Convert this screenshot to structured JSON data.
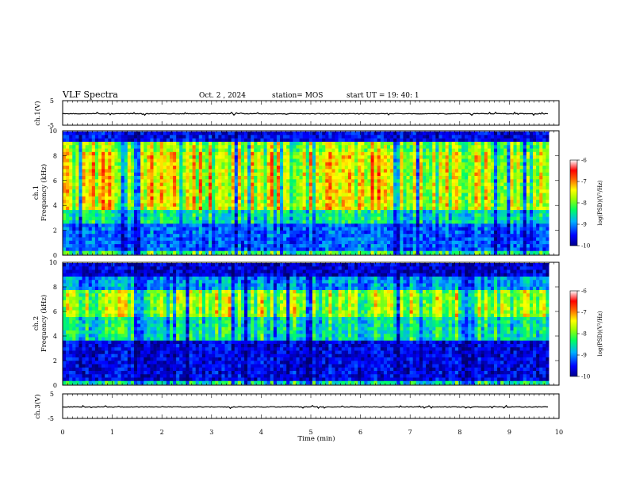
{
  "header": {
    "title": "VLF Spectra",
    "date": "Oct. 2 , 2024",
    "station": "station= MOS",
    "start": "start UT =   19: 40: 1"
  },
  "chart_data": [
    {
      "type": "line",
      "name": "waveform-ch1",
      "ylabel": "ch.1(V)",
      "ylim": [
        -5,
        5
      ],
      "yticks": [
        "5",
        "-5"
      ],
      "xlim": [
        0,
        10
      ],
      "approx_level": 0
    },
    {
      "type": "heatmap",
      "name": "spectrogram-ch1",
      "ylabel": "ch.1\nFrequency (kHz)",
      "ylim": [
        0,
        10
      ],
      "yticks": [
        "0",
        "2",
        "4",
        "6",
        "8",
        "10"
      ],
      "xlim": [
        0,
        10
      ],
      "data_end_min": 9.8,
      "colorbar": {
        "label": "log(PSD)(V²/Hz)",
        "range": [
          -10,
          -6
        ],
        "ticks": [
          "-6",
          "-7",
          "-8",
          "-9",
          "-10"
        ]
      }
    },
    {
      "type": "heatmap",
      "name": "spectrogram-ch2",
      "ylabel": "ch.2\nFrequency (kHz)",
      "ylim": [
        0,
        10
      ],
      "yticks": [
        "0",
        "2",
        "4",
        "6",
        "8",
        "10"
      ],
      "xlim": [
        0,
        10
      ],
      "data_end_min": 9.8,
      "colorbar": {
        "label": "log(PSD)(V²/Hz)",
        "range": [
          -10,
          -6
        ],
        "ticks": [
          "-6",
          "-7",
          "-8",
          "-9",
          "-10"
        ]
      }
    },
    {
      "type": "line",
      "name": "waveform-ch3",
      "ylabel": "ch.3(V)",
      "ylim": [
        -5,
        5
      ],
      "yticks": [
        "5",
        "-5"
      ],
      "xlim": [
        0,
        10
      ],
      "approx_level": 0
    }
  ],
  "xaxis": {
    "label": "Time  (min)",
    "ticks": [
      "0",
      "1",
      "2",
      "3",
      "4",
      "5",
      "6",
      "7",
      "8",
      "9",
      "10"
    ]
  },
  "colors": {
    "colormap": [
      "#00008b",
      "#0000ff",
      "#0080ff",
      "#00e0e0",
      "#00ff40",
      "#c0ff00",
      "#ffff00",
      "#ff8000",
      "#ff0000",
      "#ffffff"
    ]
  }
}
